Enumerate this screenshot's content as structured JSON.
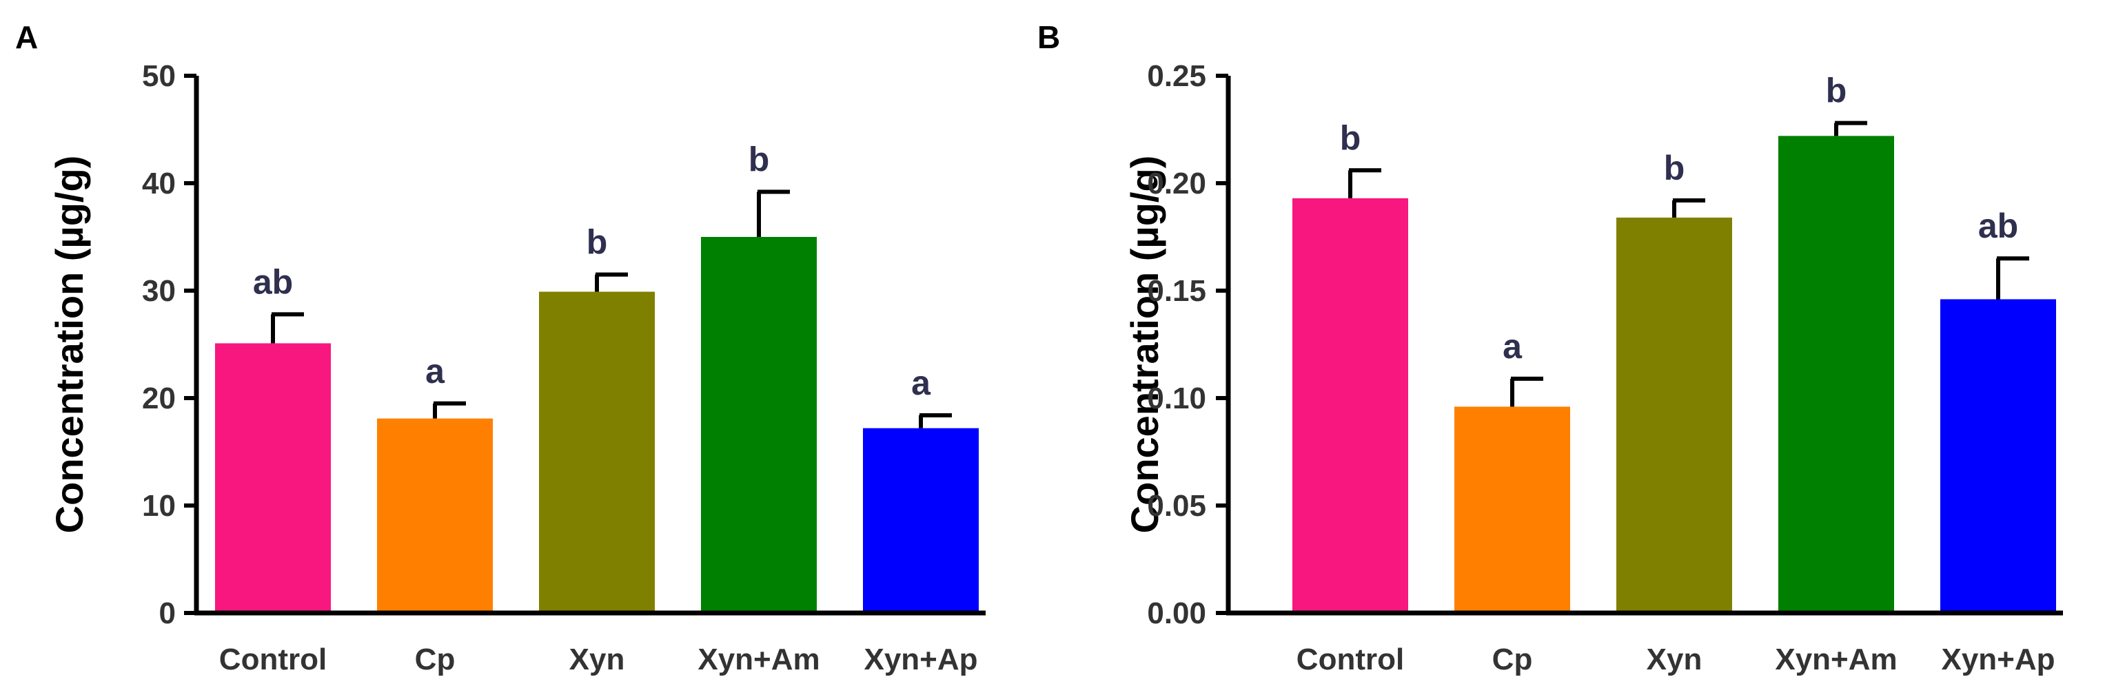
{
  "chart_data": [
    {
      "type": "bar",
      "panel": "A",
      "categories": [
        "Control",
        "Cp",
        "Xyn",
        "Xyn+Am",
        "Xyn+Ap"
      ],
      "values": [
        25.1,
        18.1,
        29.9,
        35.0,
        17.2
      ],
      "errors": [
        2.7,
        1.4,
        1.6,
        4.2,
        1.2
      ],
      "significance": [
        "ab",
        "a",
        "b",
        "b",
        "a"
      ],
      "colors": [
        "#f7177f",
        "#ff8000",
        "#808000",
        "#008000",
        "#0000ff"
      ],
      "ylabel": "Concentration (µg/g)",
      "xlabel": "",
      "ylim": [
        0,
        50
      ],
      "yticks": [
        "0",
        "10",
        "20",
        "30",
        "40",
        "50"
      ],
      "ytick_values": [
        0,
        10,
        20,
        30,
        40,
        50
      ]
    },
    {
      "type": "bar",
      "panel": "B",
      "categories": [
        "Control",
        "Cp",
        "Xyn",
        "Xyn+Am",
        "Xyn+Ap"
      ],
      "values": [
        0.193,
        0.096,
        0.184,
        0.222,
        0.146
      ],
      "errors": [
        0.013,
        0.013,
        0.008,
        0.006,
        0.019
      ],
      "significance": [
        "b",
        "a",
        "b",
        "b",
        "ab"
      ],
      "colors": [
        "#f7177f",
        "#ff8000",
        "#808000",
        "#008000",
        "#0000ff"
      ],
      "ylabel": "Concentration (µg/g)",
      "xlabel": "",
      "ylim": [
        0,
        0.25
      ],
      "yticks": [
        "0.00",
        "0.05",
        "0.10",
        "0.15",
        "0.20",
        "0.25"
      ],
      "ytick_values": [
        0,
        0.05,
        0.1,
        0.15,
        0.2,
        0.25
      ]
    }
  ]
}
